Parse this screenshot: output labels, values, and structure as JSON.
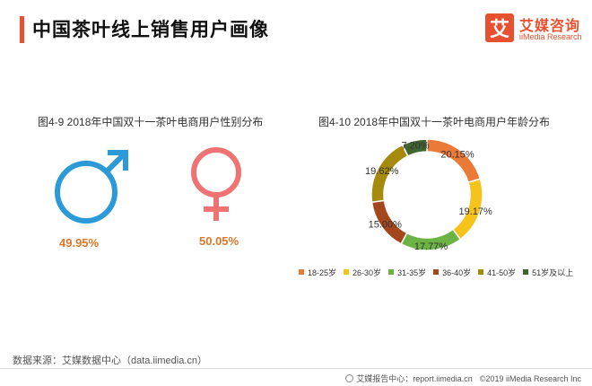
{
  "header": {
    "title": "中国茶叶线上销售用户画像",
    "logo": {
      "mark": "艾",
      "name": "艾媒咨询",
      "sub": "iiMedia Research"
    }
  },
  "gender_chart": {
    "title": "图4-9 2018年中国双十一茶叶电商用户性别分布",
    "male_pct": "49.95%",
    "female_pct": "50.05%",
    "colors": {
      "male": "#2b9ad6",
      "female": "#f07373",
      "label": "#d9772a"
    }
  },
  "chart_data": {
    "type": "pie",
    "variant": "donut",
    "title": "图4-10 2018年中国双十一茶叶电商用户年龄分布",
    "categories": [
      "18-25岁",
      "26-30岁",
      "31-35岁",
      "36-40岁",
      "41-50岁",
      "51岁及以上"
    ],
    "values": [
      20.15,
      19.17,
      17.77,
      15.0,
      19.62,
      7.2
    ],
    "labels": [
      "20.15%",
      "19.17%",
      "17.77%",
      "15.00%",
      "19.62%",
      "7.20%"
    ],
    "colors": [
      "#e97a38",
      "#f6c21c",
      "#6ab344",
      "#a5471c",
      "#a68a0e",
      "#3f6530"
    ],
    "legend_position": "bottom",
    "start_angle_deg": 0,
    "direction": "clockwise"
  },
  "source": "数据来源：艾媒数据中心（data.iimedia.cn）",
  "footer": {
    "center": "艾媒报告中心：report.iimedia.cn",
    "copyright": "©2019  iiMedia Research  Inc"
  }
}
